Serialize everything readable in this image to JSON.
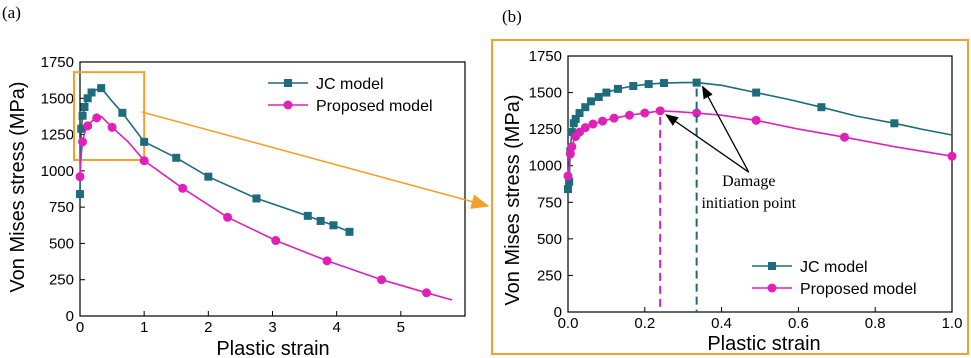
{
  "colors": {
    "jc": "#1e6b7b",
    "proposed": "#e020b8",
    "highlight": "#f5a02a",
    "axis": "#000000"
  },
  "chart_data": [
    {
      "panel_label": "(a)",
      "type": "line",
      "xlabel": "Plastic strain",
      "ylabel": "Von Mises stress (MPa)",
      "xlim": [
        0,
        6
      ],
      "ylim": [
        0,
        1750
      ],
      "xticks": [
        0,
        1,
        2,
        3,
        4,
        5
      ],
      "yticks": [
        0,
        250,
        500,
        750,
        1000,
        1250,
        1500,
        1750
      ],
      "legend": "top-right",
      "series": [
        {
          "name": "JC model",
          "marker": "square",
          "x": [
            0,
            0.01,
            0.02,
            0.04,
            0.07,
            0.12,
            0.18,
            0.26,
            0.33,
            0.5,
            0.66,
            1.0,
            1.5,
            2.0,
            2.75,
            3.55,
            3.75,
            3.95,
            4.2
          ],
          "y": [
            840,
            1160,
            1290,
            1380,
            1440,
            1500,
            1540,
            1560,
            1570,
            1480,
            1400,
            1200,
            1090,
            960,
            810,
            690,
            655,
            625,
            580
          ],
          "markers_x": [
            0,
            0.02,
            0.04,
            0.07,
            0.12,
            0.18,
            0.33,
            0.66,
            1.0,
            1.5,
            2.0,
            2.75,
            3.55,
            3.75,
            3.95,
            4.2
          ]
        },
        {
          "name": "Proposed model",
          "marker": "circle",
          "x": [
            0,
            0.01,
            0.02,
            0.04,
            0.07,
            0.12,
            0.18,
            0.26,
            0.33,
            0.5,
            0.75,
            1.0,
            1.6,
            2.3,
            3.05,
            3.85,
            4.7,
            5.4,
            5.8
          ],
          "y": [
            960,
            1040,
            1120,
            1200,
            1260,
            1310,
            1340,
            1365,
            1375,
            1300,
            1200,
            1070,
            880,
            680,
            520,
            380,
            250,
            160,
            110
          ],
          "markers_x": [
            0,
            0.04,
            0.12,
            0.26,
            0.5,
            1.0,
            1.6,
            2.3,
            3.05,
            3.85,
            4.7,
            5.4
          ]
        }
      ],
      "highlight_box": {
        "x": [
          0,
          1
        ],
        "y": [
          1075,
          1680
        ]
      }
    },
    {
      "panel_label": "(b)",
      "type": "line",
      "xlabel": "Plastic strain",
      "ylabel": "Von Mises stress (MPa)",
      "xlim": [
        0,
        1.0
      ],
      "ylim": [
        0,
        1750
      ],
      "xticks": [
        0.0,
        0.2,
        0.4,
        0.6,
        0.8,
        1.0
      ],
      "xtick_labels": [
        "0.0",
        "0.2",
        "0.4",
        "0.6",
        "0.8",
        "1.0"
      ],
      "yticks": [
        0,
        250,
        500,
        750,
        1000,
        1250,
        1500,
        1750
      ],
      "legend": "bottom-right",
      "series": [
        {
          "name": "JC model",
          "marker": "square",
          "x": [
            0,
            0.003,
            0.006,
            0.01,
            0.015,
            0.02,
            0.03,
            0.045,
            0.06,
            0.08,
            0.1,
            0.13,
            0.17,
            0.21,
            0.25,
            0.3,
            0.335,
            0.4,
            0.49,
            0.58,
            0.66,
            0.75,
            0.85,
            0.92,
            1.0
          ],
          "y": [
            840,
            890,
            1100,
            1230,
            1290,
            1320,
            1360,
            1400,
            1440,
            1470,
            1500,
            1525,
            1545,
            1558,
            1565,
            1568,
            1568,
            1550,
            1500,
            1450,
            1400,
            1340,
            1290,
            1250,
            1210
          ],
          "markers_x": [
            0,
            0.003,
            0.006,
            0.01,
            0.015,
            0.02,
            0.03,
            0.045,
            0.06,
            0.08,
            0.1,
            0.13,
            0.17,
            0.21,
            0.25,
            0.335,
            0.49,
            0.66,
            0.85
          ]
        },
        {
          "name": "Proposed model",
          "marker": "circle",
          "x": [
            0,
            0.003,
            0.006,
            0.01,
            0.015,
            0.02,
            0.03,
            0.045,
            0.065,
            0.09,
            0.12,
            0.16,
            0.2,
            0.24,
            0.28,
            0.335,
            0.4,
            0.49,
            0.6,
            0.72,
            0.85,
            1.0
          ],
          "y": [
            930,
            1010,
            1080,
            1130,
            1170,
            1200,
            1230,
            1260,
            1285,
            1305,
            1325,
            1345,
            1360,
            1375,
            1370,
            1360,
            1345,
            1310,
            1250,
            1195,
            1130,
            1065
          ],
          "markers_x": [
            0,
            0.006,
            0.01,
            0.02,
            0.03,
            0.045,
            0.065,
            0.09,
            0.12,
            0.16,
            0.2,
            0.24,
            0.335,
            0.49,
            0.72,
            1.0
          ]
        }
      ],
      "damage_points": [
        {
          "series": "JC model",
          "x": 0.335,
          "y": 1568
        },
        {
          "series": "Proposed model",
          "x": 0.24,
          "y": 1375
        }
      ],
      "annotation": {
        "lines": [
          "Damage",
          "initiation point"
        ],
        "x": 0.45,
        "y": 860
      }
    }
  ]
}
